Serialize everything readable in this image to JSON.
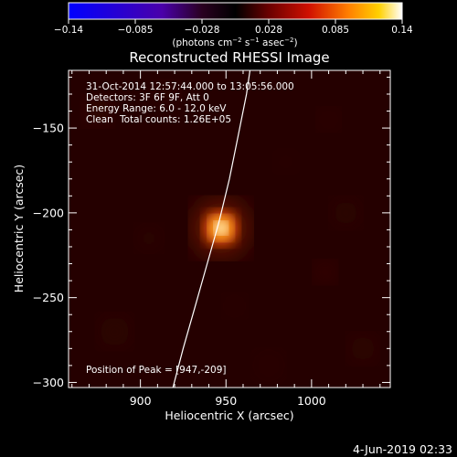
{
  "chart_data": {
    "type": "heatmap",
    "title": "Reconstructed RHESSI Image",
    "xlabel": "Heliocentric X (arcsec)",
    "ylabel": "Heliocentric Y (arcsec)",
    "xlim": [
      858,
      1046
    ],
    "ylim": [
      -303,
      -116
    ],
    "x_ticks": [
      900,
      950,
      1000
    ],
    "y_ticks": [
      -150,
      -200,
      -250,
      -300
    ],
    "colorbar": {
      "colormap": "hot-on-blue",
      "range": [
        -0.14,
        0.14
      ],
      "ticks": [
        "-0.14",
        "-0.085",
        "-0.028",
        "0.028",
        "0.085",
        "0.14"
      ],
      "unit_label": "(photons cm⁻² s⁻¹ asec⁻²)"
    },
    "annotations": {
      "time_range": "31-Oct-2014 12:57:44.000 to 13:05:56.000",
      "detectors": "Detectors: 3F 6F 9F, Att 0",
      "energy": "Energy Range: 6.0 - 12.0 keV",
      "method_label": "Clean",
      "counts": "Total counts: 1.26E+05"
    },
    "peak": {
      "label": "Position of Peak = [947,-209]",
      "x": 947,
      "y": -209,
      "value": 0.14
    },
    "limb": [
      [
        919,
        -303
      ],
      [
        925,
        -280
      ],
      [
        932,
        -255
      ],
      [
        939,
        -230
      ],
      [
        946,
        -205
      ],
      [
        952,
        -180
      ],
      [
        957,
        -155
      ],
      [
        962,
        -130
      ],
      [
        964,
        -116
      ]
    ],
    "footer": "4-Jun-2019 02:33"
  }
}
